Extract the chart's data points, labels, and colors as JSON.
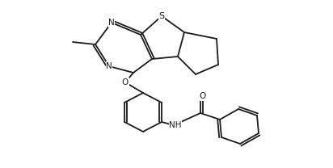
{
  "figsize": [
    4.12,
    2.08
  ],
  "dpi": 100,
  "bg_color": "#ffffff",
  "line_color": "#1a1a1a",
  "lw": 1.3,
  "atoms": {
    "S": {
      "label": "S",
      "fs": 8.5
    },
    "N": {
      "label": "N",
      "fs": 8.5
    },
    "O": {
      "label": "O",
      "fs": 8.5
    },
    "NH": {
      "label": "NH",
      "fs": 8.5
    },
    "CH3": {
      "label": "",
      "fs": 8.5
    }
  }
}
